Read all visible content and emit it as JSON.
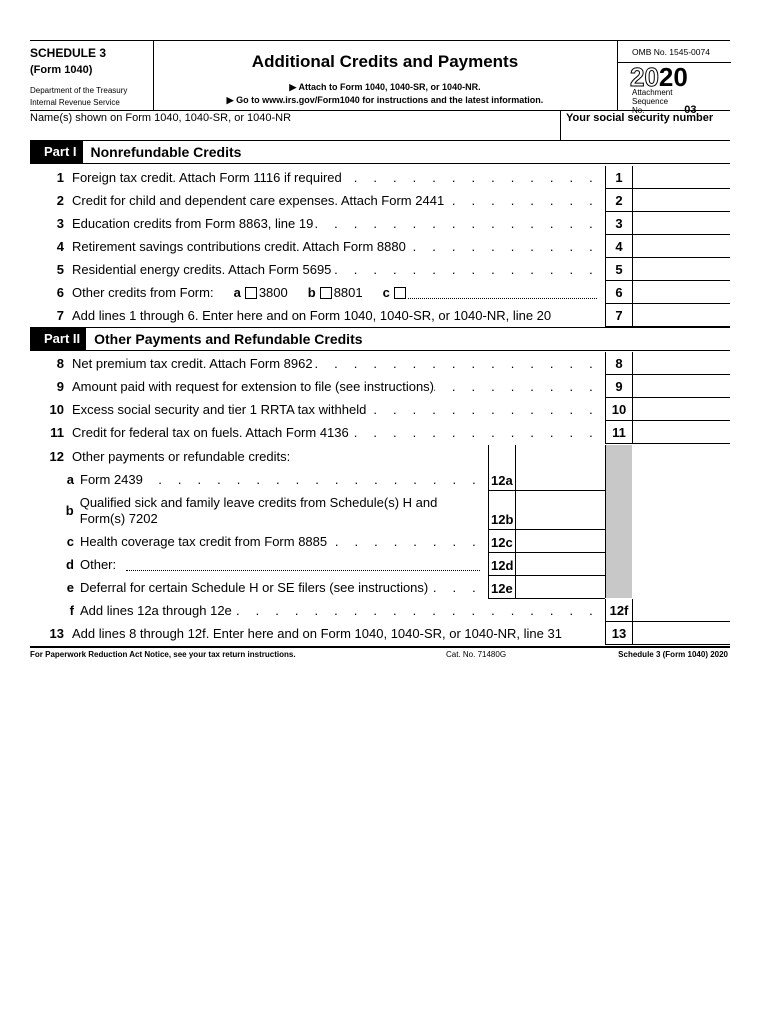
{
  "header": {
    "schedule": "SCHEDULE 3",
    "form": "(Form 1040)",
    "dept1": "Department of the Treasury",
    "dept2": "Internal Revenue Service",
    "title": "Additional Credits and Payments",
    "attach1": "▶ Attach to Form 1040, 1040-SR, or 1040-NR.",
    "attach2": "▶ Go to www.irs.gov/Form1040 for instructions and the latest information.",
    "omb": "OMB No. 1545-0074",
    "year_outline": "20",
    "year_bold": "20",
    "seq_label": "Attachment Sequence No.",
    "seq_no": "03"
  },
  "name_label": "Name(s) shown on Form 1040, 1040-SR, or 1040-NR",
  "ssn_label": "Your social security number",
  "part1": {
    "tag": "Part I",
    "title": "Nonrefundable Credits",
    "rows": [
      {
        "num": "1",
        "text": "Foreign tax credit. Attach Form 1116 if required",
        "label": "1"
      },
      {
        "num": "2",
        "text": "Credit for child and dependent care expenses. Attach Form 2441",
        "label": "2"
      },
      {
        "num": "3",
        "text": "Education credits from Form 8863, line 19",
        "label": "3"
      },
      {
        "num": "4",
        "text": "Retirement savings contributions credit. Attach Form 8880",
        "label": "4"
      },
      {
        "num": "5",
        "text": "Residential energy credits. Attach Form 5695",
        "label": "5"
      },
      {
        "num": "6",
        "text": "Other credits from Form:",
        "label": "6",
        "a": "a",
        "a_val": "3800",
        "b": "b",
        "b_val": "8801",
        "c": "c"
      },
      {
        "num": "7",
        "text": "Add lines 1 through 6. Enter here and on Form 1040, 1040-SR, or 1040-NR, line 20",
        "label": "7"
      }
    ]
  },
  "part2": {
    "tag": "Part II",
    "title": "Other Payments and Refundable Credits",
    "rows": [
      {
        "num": "8",
        "text": "Net premium tax credit. Attach Form 8962",
        "label": "8"
      },
      {
        "num": "9",
        "text": "Amount paid with request for extension to file (see instructions)",
        "label": "9"
      },
      {
        "num": "10",
        "text": "Excess social security and tier 1 RRTA tax withheld",
        "label": "10"
      },
      {
        "num": "11",
        "text": "Credit for federal tax on fuels. Attach Form 4136",
        "label": "11"
      },
      {
        "num": "12",
        "text": "Other payments or refundable credits:"
      },
      {
        "num": "a",
        "text": "Form 2439",
        "label": "12a"
      },
      {
        "num": "b",
        "text": "Qualified sick and family leave credits from Schedule(s) H and",
        "text2": "Form(s) 7202",
        "label": "12b"
      },
      {
        "num": "c",
        "text": "Health coverage tax credit from Form 8885",
        "label": "12c"
      },
      {
        "num": "d",
        "text": "Other:",
        "label": "12d"
      },
      {
        "num": "e",
        "text": "Deferral for certain Schedule H or SE filers (see instructions)",
        "label": "12e"
      },
      {
        "num": "f",
        "text": "Add lines 12a through 12e",
        "label": "12f"
      },
      {
        "num": "13",
        "text": "Add lines 8 through 12f. Enter here and on Form 1040, 1040-SR, or 1040-NR, line 31",
        "label": "13"
      }
    ]
  },
  "footer": {
    "left": "For Paperwork Reduction Act Notice, see your tax return instructions.",
    "cat": "Cat. No. 71480G",
    "right": "Schedule 3 (Form 1040) 2020"
  },
  "dots": ". . . . . . . . . . . . . . . . . . . . . . . . . . . . . . . . . . . . . . ."
}
